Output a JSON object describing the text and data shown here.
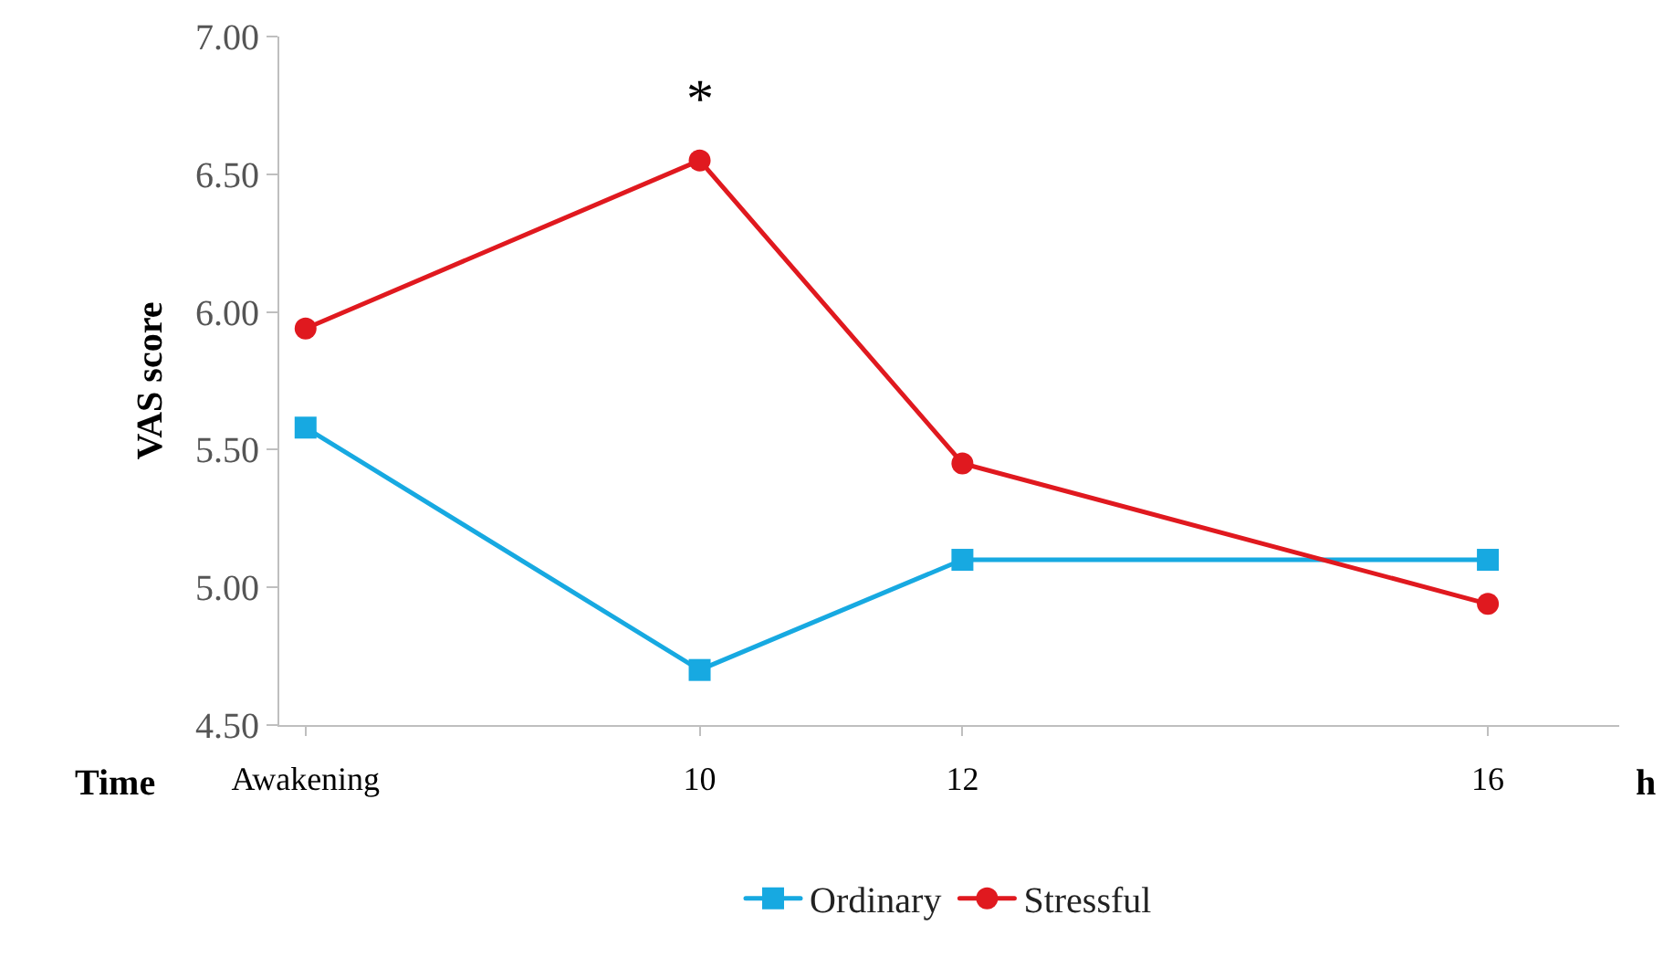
{
  "chart_data": {
    "type": "line",
    "xlabel": "Time",
    "ylabel": "VAS score",
    "x": [
      7,
      10,
      12,
      16
    ],
    "series": [
      {
        "name": "Ordinary",
        "color": "#17a9e1",
        "marker": "square",
        "values": [
          5.58,
          4.7,
          5.1,
          5.1
        ]
      },
      {
        "name": "Stressful",
        "color": "#e0191f",
        "marker": "circle",
        "values": [
          5.94,
          6.55,
          5.45,
          4.94
        ]
      }
    ],
    "xlim": [
      6.8,
      17
    ],
    "xticks": [
      {
        "value": 7,
        "label": "Awakening"
      },
      10,
      12,
      16
    ],
    "ylim": [
      4.5,
      7.0
    ],
    "yticks": [
      {
        "value": 4.5,
        "label": "4.50"
      },
      {
        "value": 5.0,
        "label": "5.00"
      },
      {
        "value": 5.5,
        "label": "5.50"
      },
      {
        "value": 6.0,
        "label": "6.00"
      },
      {
        "value": 6.5,
        "label": "6.50"
      },
      {
        "value": 7.0,
        "label": "7.00"
      }
    ],
    "annotations": [
      "*",
      "h"
    ],
    "grid": false,
    "legend": "bottom",
    "line_style": "solid"
  }
}
